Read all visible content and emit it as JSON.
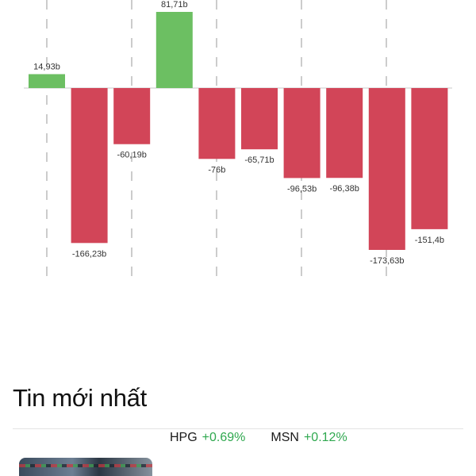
{
  "chart_data": {
    "type": "bar",
    "categories": [
      "",
      "",
      "",
      "",
      "",
      "",
      "",
      "",
      "",
      ""
    ],
    "values": [
      14.93,
      -166.23,
      -60.19,
      81.71,
      -76,
      -65.71,
      -96.53,
      -96.38,
      -173.63,
      -151.4
    ],
    "value_labels": [
      "14,93b",
      "-166,23b",
      "-60,19b",
      "81,71b",
      "-76b",
      "-65,71b",
      "-96,53b",
      "-96,38b",
      "-173,63b",
      "-151,4b"
    ],
    "positive_color": "#6cbf62",
    "negative_color": "#d24558",
    "ylim": [
      -185,
      85
    ],
    "grid": true,
    "grid_style": "dashed-vertical"
  },
  "news": {
    "title": "Tin mới nhất",
    "items": [
      {
        "tickers": [
          {
            "symbol": "HPG",
            "change": "+0.69%"
          },
          {
            "symbol": "MSN",
            "change": "+0.12%"
          }
        ]
      }
    ]
  }
}
